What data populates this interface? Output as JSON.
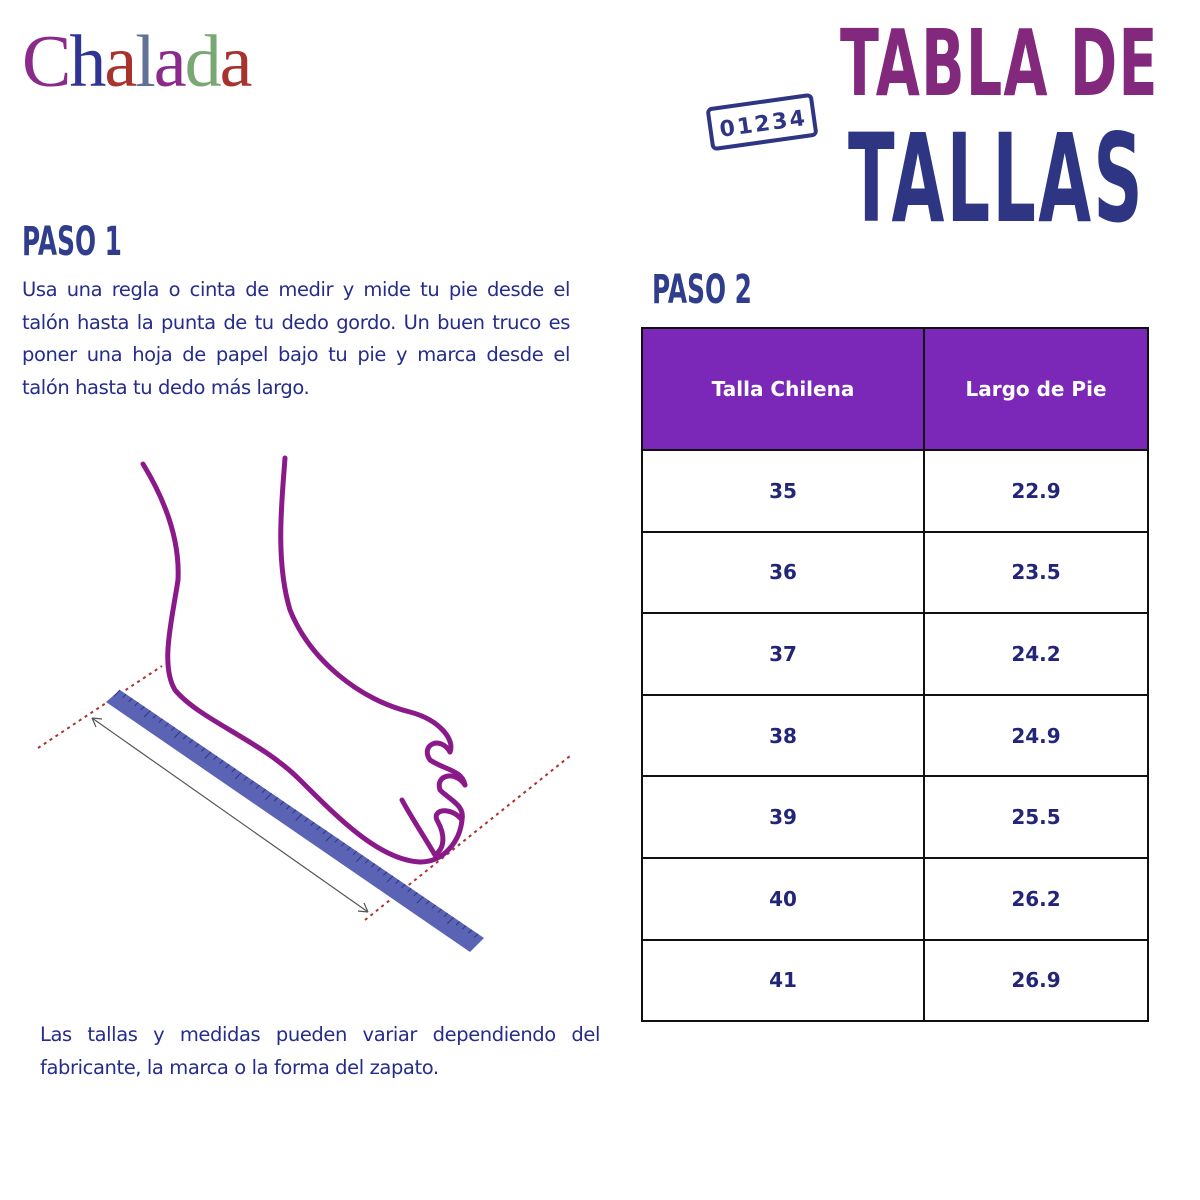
{
  "brand": {
    "logo_text": "Chalada",
    "logo_letters": [
      "C",
      "h",
      "a",
      "l",
      "a",
      "d",
      "a"
    ],
    "logo_colors": [
      "#8a2a8a",
      "#2e3592",
      "#a8322c",
      "#5f7398",
      "#8a2a8a",
      "#7aa874",
      "#a8322c"
    ]
  },
  "title": {
    "line1": "TABLA DE",
    "line2": "TALLAS",
    "ruler_digits": [
      "0",
      "1",
      "2",
      "3",
      "4"
    ]
  },
  "colors": {
    "title_purple": "#82297d",
    "title_navy": "#2e3683",
    "header_bg": "#7b27b8",
    "text_navy": "#262c8a",
    "foot_stroke": "#8a1a8a",
    "ruler": "#5b63b5"
  },
  "step1": {
    "heading": "PASO 1",
    "text": "Usa una regla o cinta de medir y mide tu pie desde el talón hasta la punta de tu dedo gordo. Un buen truco es poner una hoja de papel bajo tu pie y marca desde el talón hasta tu dedo más largo."
  },
  "step2": {
    "heading": "PASO 2"
  },
  "table": {
    "headers": [
      "Talla Chilena",
      "Largo de Pie"
    ],
    "rows": [
      [
        "35",
        "22.9"
      ],
      [
        "36",
        "23.5"
      ],
      [
        "37",
        "24.2"
      ],
      [
        "38",
        "24.9"
      ],
      [
        "39",
        "25.5"
      ],
      [
        "40",
        "26.2"
      ],
      [
        "41",
        "26.9"
      ]
    ]
  },
  "note": "Las tallas y medidas pueden variar dependiendo del fabricante, la marca o la forma del zapato."
}
